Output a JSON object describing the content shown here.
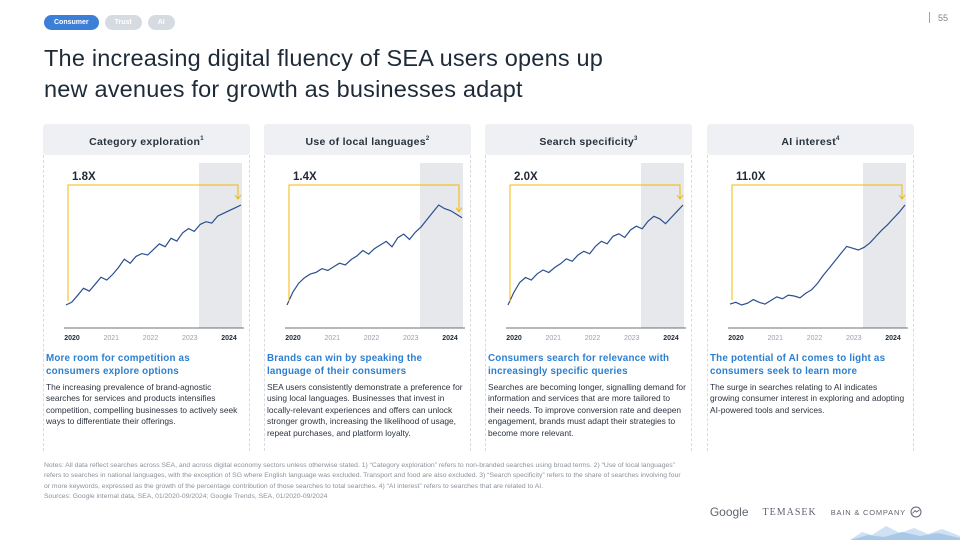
{
  "tags": [
    {
      "label": "Consumer",
      "active": true
    },
    {
      "label": "Trust",
      "active": false
    },
    {
      "label": "AI",
      "active": false
    }
  ],
  "page_number": "55",
  "title_line1": "The increasing digital fluency of SEA users opens up",
  "title_line2": "new avenues for growth as businesses adapt",
  "panels": [
    {
      "header": "Category exploration",
      "footnote_mark": "1",
      "multiplier": "1.8X",
      "caption_title": "More room for competition as consumers explore options",
      "caption_body": "The increasing prevalence of brand-agnostic searches for services and products intensifies competition, compelling businesses to actively seek ways to differentiate their offerings."
    },
    {
      "header": "Use of local languages",
      "footnote_mark": "2",
      "multiplier": "1.4X",
      "caption_title": "Brands can win by speaking the language of their consumers",
      "caption_body": "SEA users consistently demonstrate a preference for using local languages. Businesses that invest in locally-relevant experiences and offers can unlock stronger growth, increasing the likelihood of usage, repeat purchases, and platform loyalty."
    },
    {
      "header": "Search specificity",
      "footnote_mark": "3",
      "multiplier": "2.0X",
      "caption_title": "Consumers search for relevance with increasingly specific queries",
      "caption_body": "Searches are becoming longer, signalling demand for information and services that are more tailored to their needs. To improve conversion rate and deepen engagement, brands must adapt their strategies to become more relevant."
    },
    {
      "header": "AI interest",
      "footnote_mark": "4",
      "multiplier": "11.0X",
      "caption_title": "The potential of AI comes to light as consumers seek to learn more",
      "caption_body": "The surge in searches relating to AI indicates growing consumer interest in exploring and adopting AI-powered tools and services."
    }
  ],
  "chart_data": [
    {
      "type": "line",
      "title": "Category exploration",
      "x_labels": [
        "2020",
        "2021",
        "2022",
        "2023",
        "2024"
      ],
      "highlight_period": "2024",
      "annotation": "1.8X",
      "values": [
        0.2,
        0.22,
        0.27,
        0.32,
        0.3,
        0.35,
        0.4,
        0.38,
        0.42,
        0.47,
        0.53,
        0.5,
        0.55,
        0.57,
        0.56,
        0.6,
        0.64,
        0.62,
        0.68,
        0.66,
        0.72,
        0.75,
        0.73,
        0.78,
        0.8,
        0.79,
        0.84,
        0.86,
        0.88,
        0.9,
        0.92
      ]
    },
    {
      "type": "line",
      "title": "Use of local languages",
      "x_labels": [
        "2020",
        "2021",
        "2022",
        "2023",
        "2024"
      ],
      "highlight_period": "2024",
      "annotation": "1.4X",
      "values": [
        0.35,
        0.42,
        0.47,
        0.5,
        0.52,
        0.53,
        0.55,
        0.54,
        0.56,
        0.58,
        0.57,
        0.6,
        0.62,
        0.65,
        0.63,
        0.66,
        0.68,
        0.7,
        0.67,
        0.72,
        0.74,
        0.71,
        0.75,
        0.78,
        0.82,
        0.86,
        0.9,
        0.88,
        0.87,
        0.85,
        0.83
      ]
    },
    {
      "type": "line",
      "title": "Search specificity",
      "x_labels": [
        "2020",
        "2021",
        "2022",
        "2023",
        "2024"
      ],
      "highlight_period": "2024",
      "annotation": "2.0X",
      "values": [
        0.15,
        0.25,
        0.33,
        0.37,
        0.35,
        0.4,
        0.43,
        0.41,
        0.45,
        0.48,
        0.52,
        0.5,
        0.55,
        0.58,
        0.56,
        0.62,
        0.66,
        0.64,
        0.7,
        0.72,
        0.69,
        0.75,
        0.78,
        0.76,
        0.82,
        0.86,
        0.84,
        0.8,
        0.85,
        0.9,
        0.95
      ]
    },
    {
      "type": "line",
      "title": "AI interest",
      "x_labels": [
        "2020",
        "2021",
        "2022",
        "2023",
        "2024"
      ],
      "highlight_period": "2024",
      "annotation": "11.0X",
      "values": [
        0.1,
        0.12,
        0.09,
        0.11,
        0.15,
        0.12,
        0.1,
        0.14,
        0.18,
        0.16,
        0.2,
        0.19,
        0.17,
        0.22,
        0.26,
        0.33,
        0.42,
        0.5,
        0.58,
        0.66,
        0.74,
        0.72,
        0.7,
        0.73,
        0.78,
        0.85,
        0.92,
        0.98,
        1.05,
        1.12,
        1.2
      ]
    }
  ],
  "notes": "Notes: All data reflect searches across SEA, and across digital economy sectors unless otherwise stated. 1) “Category exploration” refers to non-branded searches using broad terms. 2) “Use of local languages” refers to searches in national languages, with the exception of SG where English language was excluded. Transport and food are also excluded. 3) “Search specificity” refers to the share of searches involving four or more keywords, expressed as the growth of the percentage contribution of those searches to total searches. 4) “AI interest” refers to searches that are related to AI.",
  "sources": "Sources: Google internal data, SEA, 01/2020-09/2024; Google Trends, SEA, 01/2020-09/2024",
  "logos": {
    "google": "Google",
    "temasek": "TEMASEK",
    "bain": "BAIN & COMPANY"
  },
  "colors": {
    "accent": "#2c7fd0",
    "line": "#2b4f8e",
    "annotation": "#f2b705",
    "highlight": "#e6e8eb"
  }
}
